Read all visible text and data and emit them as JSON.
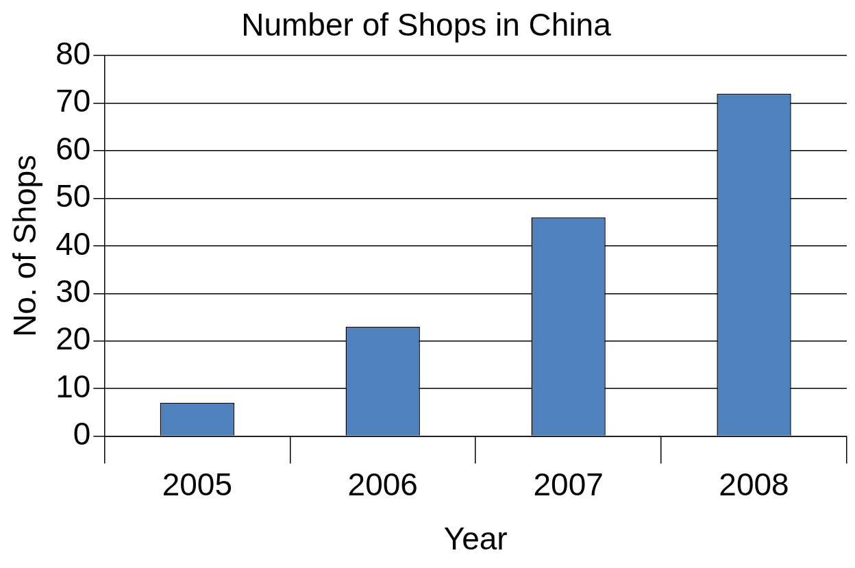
{
  "chart_data": {
    "type": "bar",
    "title": "Number of Shops in China",
    "xlabel": "Year",
    "ylabel": "No. of Shops",
    "categories": [
      "2005",
      "2006",
      "2007",
      "2008"
    ],
    "values": [
      7,
      23,
      46,
      72
    ],
    "color": "#4f81bd",
    "ylim": [
      0,
      80
    ],
    "yticks": [
      0,
      10,
      20,
      30,
      40,
      50,
      60,
      70,
      80
    ],
    "grid": "y",
    "legend": false
  }
}
